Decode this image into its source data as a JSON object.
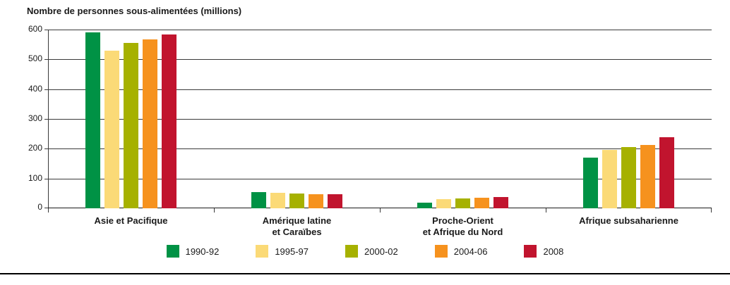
{
  "title": "Nombre de personnes sous-alimentées (millions)",
  "chart_data": {
    "type": "bar",
    "title": "Nombre de personnes sous-alimentées (millions)",
    "categories": [
      "Asie et Pacifique",
      "Amérique latine\net Caraïbes",
      "Proche-Orient\net Afrique du Nord",
      "Afrique subsaharienne"
    ],
    "series": [
      {
        "name": "1990-92",
        "color": "#009245",
        "values": [
          590,
          54,
          20,
          170
        ]
      },
      {
        "name": "1995-97",
        "color": "#FBDA77",
        "values": [
          530,
          52,
          30,
          196
        ]
      },
      {
        "name": "2000-02",
        "color": "#A6B100",
        "values": [
          554,
          49,
          33,
          206
        ]
      },
      {
        "name": "2004-06",
        "color": "#F6921E",
        "values": [
          566,
          47,
          36,
          213
        ]
      },
      {
        "name": "2008",
        "color": "#C1142E",
        "values": [
          583,
          47,
          38,
          239
        ]
      }
    ],
    "xlabel": "",
    "ylabel": "",
    "ylim": [
      0,
      600
    ],
    "ytick_interval": 100,
    "grid": true,
    "legend_position": "bottom"
  }
}
